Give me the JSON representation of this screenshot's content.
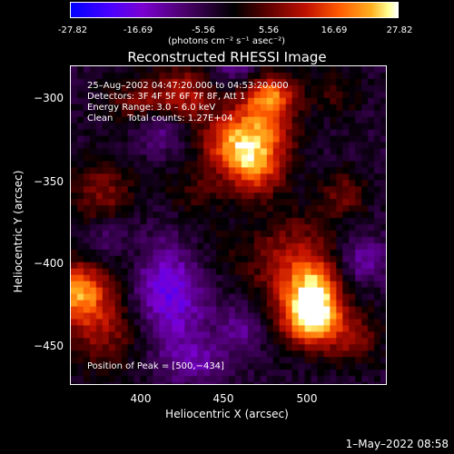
{
  "chart_data": {
    "type": "heatmap",
    "title": "Reconstructed RHESSI Image",
    "xlabel": "Heliocentric X (arcsec)",
    "ylabel": "Heliocentric Y (arcsec)",
    "xlim": [
      356,
      545
    ],
    "ylim": [
      -474,
      -284
    ],
    "x_ticks": [
      "400",
      "450",
      "500"
    ],
    "y_ticks": [
      "−300",
      "−350",
      "−400",
      "−450"
    ],
    "colorbar": {
      "ticks": [
        "-27.82",
        "-16.69",
        "-5.56",
        "5.56",
        "16.69",
        "27.82"
      ],
      "units_text": "(photons cm⁻² s⁻¹ asec⁻²)",
      "range": [
        -27.82,
        27.82
      ]
    },
    "annotations": [
      "25–Aug–2002 04:47:20.000 to 04:53:20.000",
      "Detectors: 3F 4F 5F 6F 7F 8F, Att 1",
      "Energy Range: 3.0 – 6.0 keV",
      "Clean     Total counts: 1.27E+04"
    ],
    "peak_label": "Position of Peak = [500,−434]",
    "peak": {
      "x": 500,
      "y": -434
    }
  },
  "footer": {
    "date": "1–May–2022 08:58"
  }
}
